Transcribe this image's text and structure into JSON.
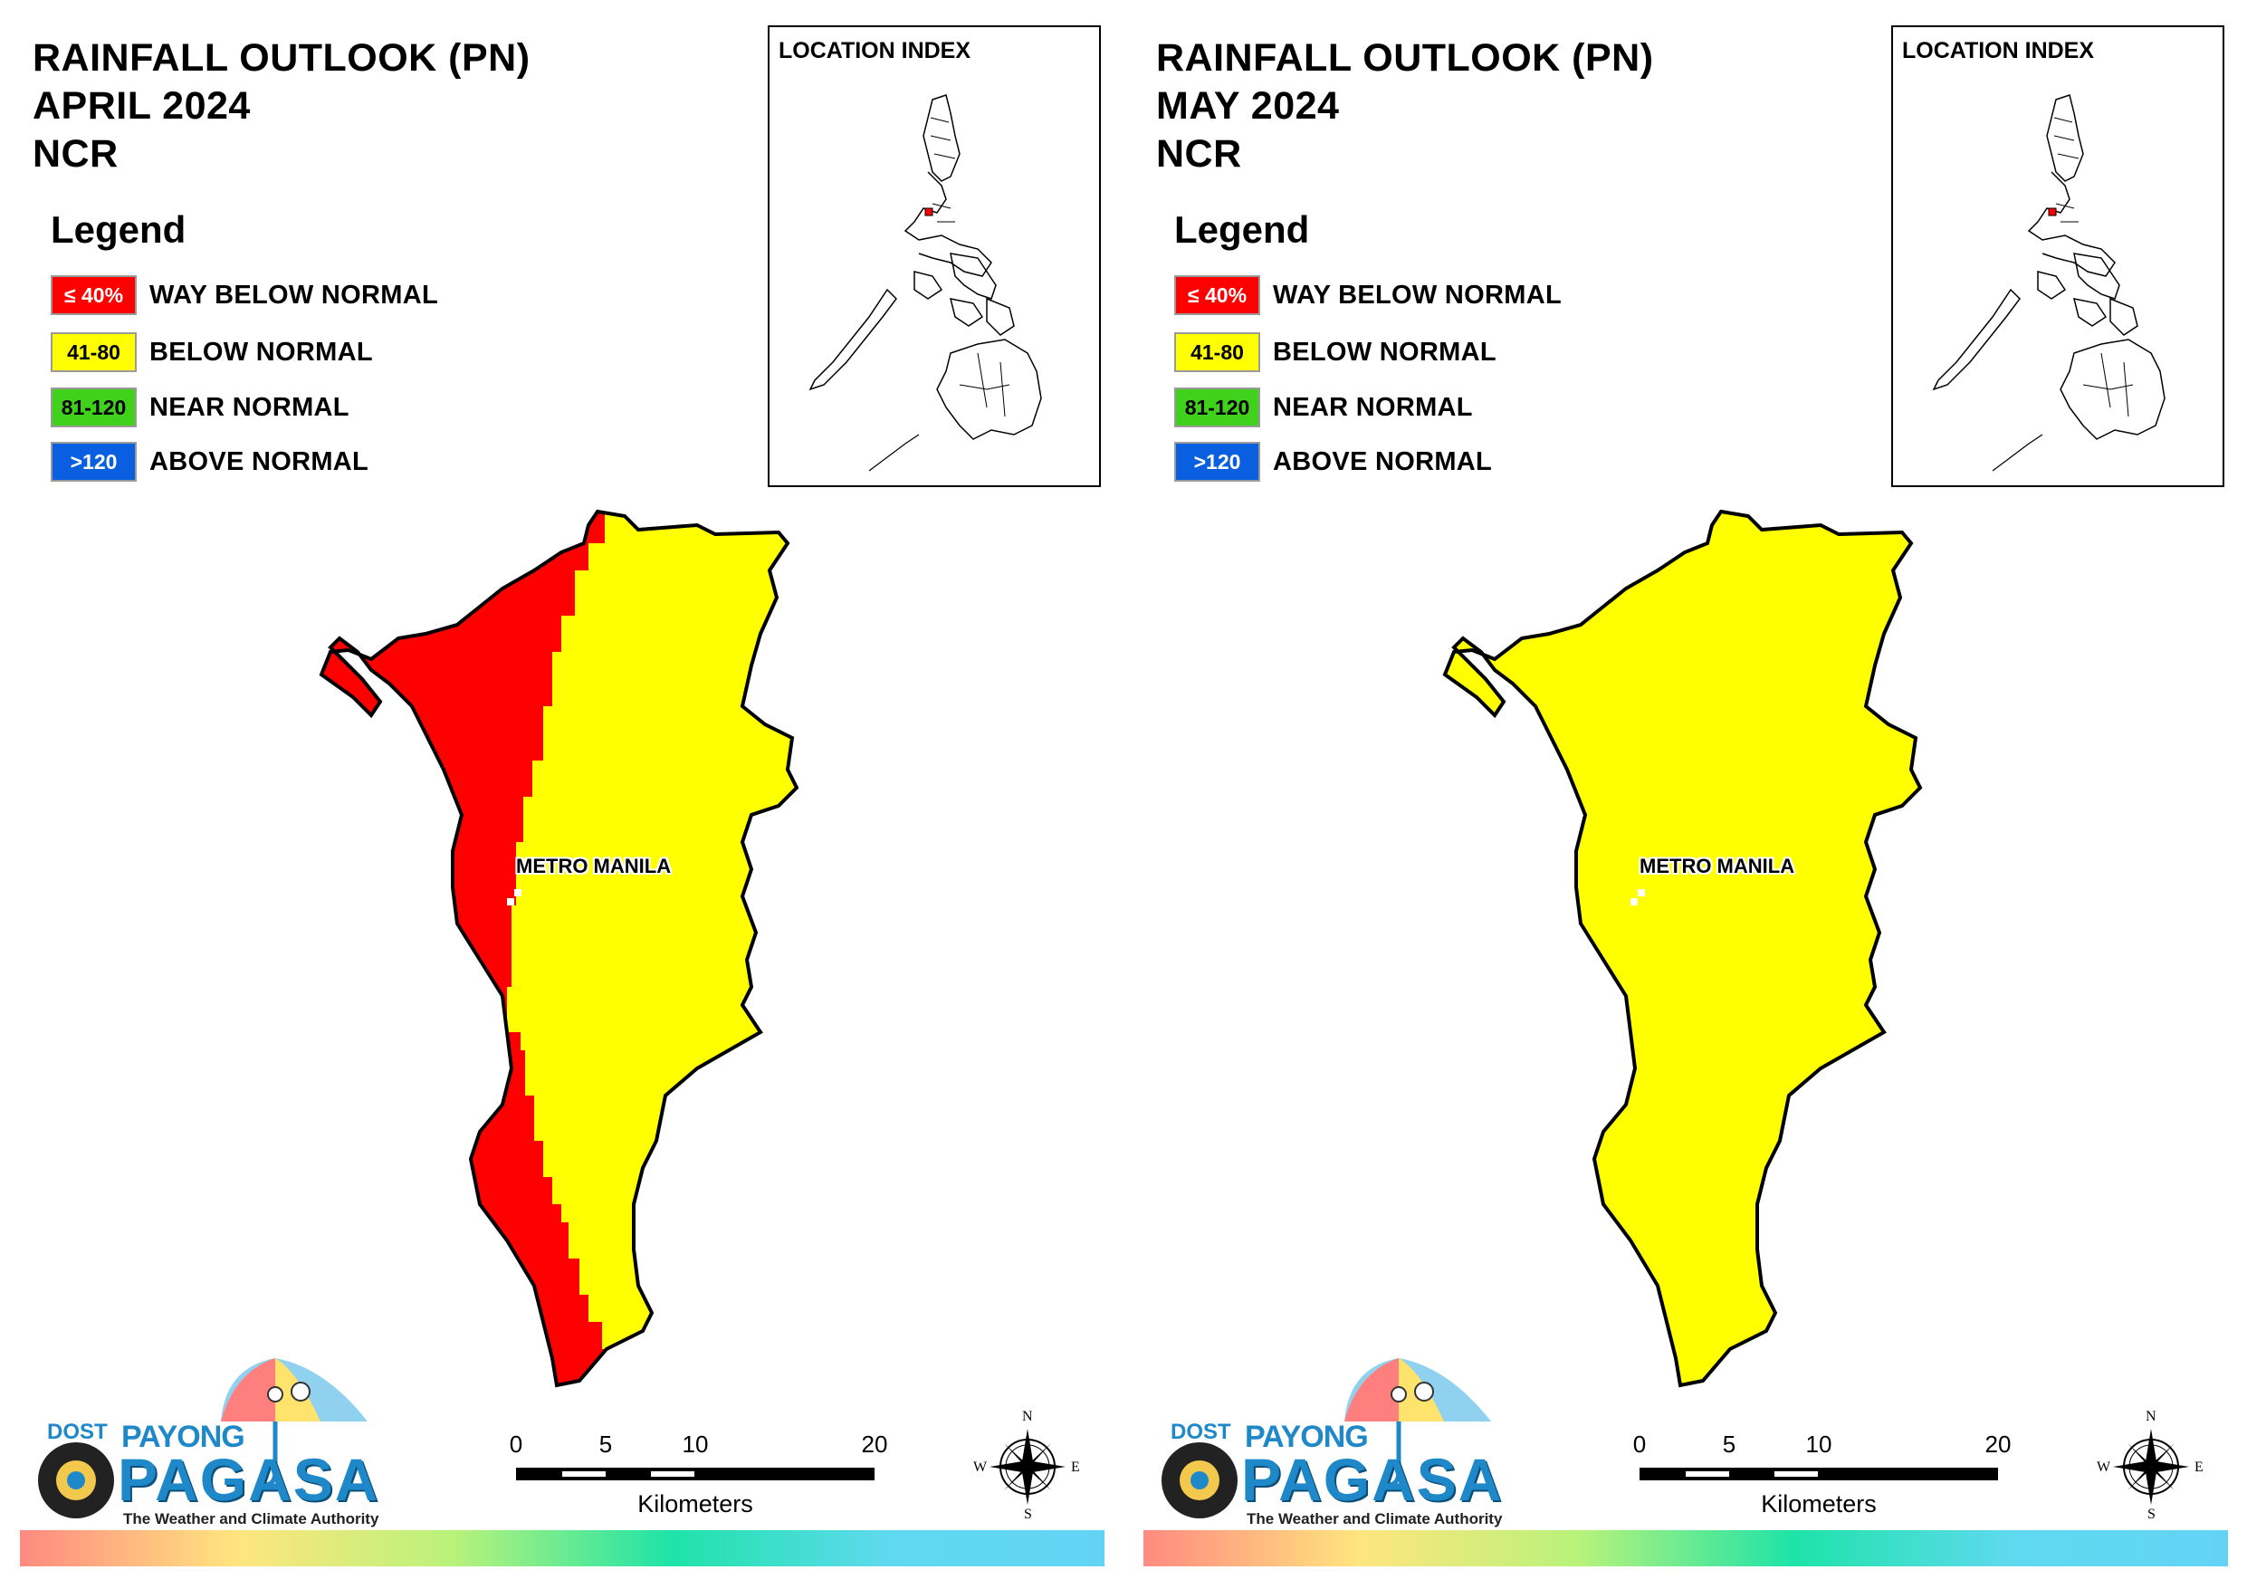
{
  "panels": [
    {
      "title_line1": "RAINFALL OUTLOOK (PN)",
      "title_line2": "APRIL 2024",
      "title_line3": "NCR",
      "map_label": "METRO MANILA"
    },
    {
      "title_line1": "RAINFALL OUTLOOK (PN)",
      "title_line2": "MAY 2024",
      "title_line3": "NCR",
      "map_label": "METRO MANILA"
    }
  ],
  "legend": {
    "title": "Legend",
    "items": [
      {
        "swatch": "≤ 40%",
        "label": "WAY BELOW NORMAL",
        "color": "#ff0000",
        "text_color": "#ffffff"
      },
      {
        "swatch": "41-80",
        "label": "BELOW NORMAL",
        "color": "#ffff00",
        "text_color": "#000000"
      },
      {
        "swatch": "81-120",
        "label": "NEAR NORMAL",
        "color": "#3fd11b",
        "text_color": "#000000"
      },
      {
        "swatch": ">120",
        "label": "ABOVE NORMAL",
        "color": "#0a5fe0",
        "text_color": "#ffffff"
      }
    ]
  },
  "location_index": {
    "title": "LOCATION INDEX"
  },
  "scale": {
    "ticks": [
      "0",
      "5",
      "10",
      "20"
    ],
    "unit": "Kilometers"
  },
  "compass": {
    "n": "N",
    "s": "S",
    "e": "E",
    "w": "W"
  },
  "logo": {
    "dost": "DOST",
    "payong": "PAYONG",
    "pagasa": "PAGASA",
    "tagline": "The Weather and Climate Authority"
  },
  "colors": {
    "way_below": "#ff0000",
    "below": "#ffff00",
    "outline": "#000000"
  }
}
